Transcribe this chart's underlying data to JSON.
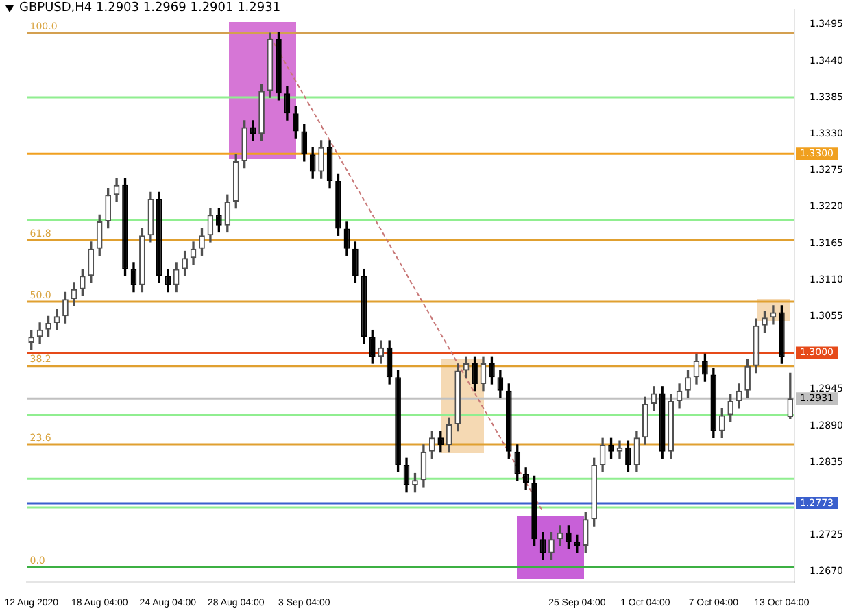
{
  "chart_data": {
    "type": "candlestick",
    "title": "GBPUSD,H4 1.2903 1.2969 1.2901 1.2931",
    "categories": [
      "12 Aug 2020",
      null,
      null,
      null,
      null,
      null,
      null,
      null,
      "18 Aug 04:00",
      null,
      null,
      null,
      null,
      null,
      null,
      null,
      "24 Aug 04:00",
      null,
      null,
      null,
      null,
      null,
      null,
      null,
      "28 Aug 04:00",
      null,
      null,
      null,
      null,
      null,
      null,
      null,
      "3 Sep 04:00",
      null,
      null,
      null,
      null,
      null,
      null,
      null,
      null,
      null,
      null,
      null,
      null,
      null,
      null,
      null,
      null,
      null,
      null,
      null,
      null,
      null,
      null,
      null,
      null,
      null,
      null,
      null,
      null,
      null,
      null,
      null,
      "25 Sep 04:00",
      null,
      null,
      null,
      null,
      null,
      null,
      null,
      "1 Oct 04:00",
      null,
      null,
      null,
      null,
      null,
      null,
      null,
      "7 Oct 04:00",
      null,
      null,
      null,
      null,
      null,
      null,
      null,
      "13 Oct 04:00",
      null
    ],
    "ohlc": [
      [
        1.3015,
        1.3034,
        1.3005,
        1.3024
      ],
      [
        1.3024,
        1.3045,
        1.3014,
        1.3035
      ],
      [
        1.3035,
        1.3055,
        1.3025,
        1.3045
      ],
      [
        1.3045,
        1.3065,
        1.3035,
        1.3055
      ],
      [
        1.3055,
        1.3091,
        1.3045,
        1.3081
      ],
      [
        1.3081,
        1.3106,
        1.3071,
        1.3096
      ],
      [
        1.3096,
        1.3126,
        1.3086,
        1.3116
      ],
      [
        1.3116,
        1.3167,
        1.3106,
        1.3157
      ],
      [
        1.3157,
        1.3208,
        1.3147,
        1.3198
      ],
      [
        1.3198,
        1.3248,
        1.3188,
        1.3238
      ],
      [
        1.3238,
        1.3263,
        1.3228,
        1.3253
      ],
      [
        1.3253,
        1.3263,
        1.3116,
        1.3126
      ],
      [
        1.3126,
        1.3136,
        1.3092,
        1.3102
      ],
      [
        1.3102,
        1.3187,
        1.3092,
        1.3177
      ],
      [
        1.3177,
        1.3242,
        1.3167,
        1.3232
      ],
      [
        1.3232,
        1.3242,
        1.3106,
        1.3116
      ],
      [
        1.3116,
        1.3126,
        1.3092,
        1.3102
      ],
      [
        1.3102,
        1.3136,
        1.3092,
        1.3126
      ],
      [
        1.3126,
        1.3153,
        1.3116,
        1.3143
      ],
      [
        1.3143,
        1.3167,
        1.3133,
        1.3157
      ],
      [
        1.3157,
        1.3187,
        1.3147,
        1.3177
      ],
      [
        1.3177,
        1.3218,
        1.3167,
        1.3208
      ],
      [
        1.3208,
        1.3218,
        1.3182,
        1.3192
      ],
      [
        1.3192,
        1.3238,
        1.3182,
        1.3228
      ],
      [
        1.3228,
        1.3299,
        1.3218,
        1.3289
      ],
      [
        1.3289,
        1.335,
        1.3279,
        1.334
      ],
      [
        1.334,
        1.335,
        1.332,
        1.333
      ],
      [
        1.333,
        1.3405,
        1.332,
        1.3395
      ],
      [
        1.3395,
        1.3482,
        1.3385,
        1.3473
      ],
      [
        1.3473,
        1.3483,
        1.3381,
        1.3391
      ],
      [
        1.3391,
        1.3401,
        1.3351,
        1.3361
      ],
      [
        1.3361,
        1.3371,
        1.3324,
        1.3334
      ],
      [
        1.3334,
        1.3344,
        1.3289,
        1.3299
      ],
      [
        1.3299,
        1.3309,
        1.3263,
        1.3273
      ],
      [
        1.3273,
        1.332,
        1.3263,
        1.331
      ],
      [
        1.331,
        1.332,
        1.3249,
        1.3259
      ],
      [
        1.3259,
        1.3269,
        1.3177,
        1.3187
      ],
      [
        1.3187,
        1.3197,
        1.3147,
        1.3157
      ],
      [
        1.3157,
        1.3167,
        1.3106,
        1.3116
      ],
      [
        1.3116,
        1.3126,
        1.3014,
        1.3024
      ],
      [
        1.3024,
        1.3034,
        1.2984,
        1.2994
      ],
      [
        1.2994,
        1.3018,
        1.2984,
        1.3008
      ],
      [
        1.3008,
        1.3018,
        1.2953,
        1.2963
      ],
      [
        1.2963,
        1.2973,
        1.2821,
        1.2831
      ],
      [
        1.2831,
        1.2841,
        1.279,
        1.28
      ],
      [
        1.28,
        1.2818,
        1.279,
        1.2808
      ],
      [
        1.2808,
        1.2861,
        1.2798,
        1.2851
      ],
      [
        1.2851,
        1.2882,
        1.2841,
        1.2872
      ],
      [
        1.2872,
        1.2882,
        1.2851,
        1.2861
      ],
      [
        1.2861,
        1.2902,
        1.2851,
        1.2892
      ],
      [
        1.2892,
        1.2983,
        1.2882,
        1.2973
      ],
      [
        1.2973,
        1.2994,
        1.2963,
        1.2984
      ],
      [
        1.2984,
        1.2994,
        1.2943,
        1.2953
      ],
      [
        1.2953,
        1.2994,
        1.2943,
        1.2984
      ],
      [
        1.2984,
        1.2994,
        1.2953,
        1.2963
      ],
      [
        1.2963,
        1.2973,
        1.2933,
        1.2943
      ],
      [
        1.2943,
        1.2953,
        1.2841,
        1.2851
      ],
      [
        1.2851,
        1.2861,
        1.2807,
        1.2817
      ],
      [
        1.2817,
        1.2827,
        1.2794,
        1.2804
      ],
      [
        1.2804,
        1.2814,
        1.2709,
        1.2719
      ],
      [
        1.2719,
        1.2729,
        1.2688,
        1.2698
      ],
      [
        1.2698,
        1.2729,
        1.2688,
        1.2719
      ],
      [
        1.2719,
        1.2739,
        1.2709,
        1.2729
      ],
      [
        1.2729,
        1.2739,
        1.2705,
        1.2715
      ],
      [
        1.2715,
        1.2725,
        1.2699,
        1.2709
      ],
      [
        1.2709,
        1.2759,
        1.2699,
        1.2749
      ],
      [
        1.2749,
        1.2841,
        1.2739,
        1.2831
      ],
      [
        1.2831,
        1.2871,
        1.2821,
        1.2861
      ],
      [
        1.2861,
        1.2871,
        1.2841,
        1.2851
      ],
      [
        1.2851,
        1.2867,
        1.2841,
        1.2857
      ],
      [
        1.2857,
        1.2867,
        1.2821,
        1.2831
      ],
      [
        1.2831,
        1.2882,
        1.2821,
        1.2872
      ],
      [
        1.2872,
        1.2933,
        1.2862,
        1.2923
      ],
      [
        1.2923,
        1.2949,
        1.2913,
        1.2939
      ],
      [
        1.2939,
        1.2949,
        1.2841,
        1.2851
      ],
      [
        1.2851,
        1.2937,
        1.2841,
        1.2927
      ],
      [
        1.2927,
        1.2953,
        1.2917,
        1.2943
      ],
      [
        1.2943,
        1.2973,
        1.2933,
        1.2963
      ],
      [
        1.2963,
        1.2998,
        1.2953,
        1.2988
      ],
      [
        1.2988,
        1.2998,
        1.2957,
        1.2967
      ],
      [
        1.2967,
        1.2977,
        1.2872,
        1.2882
      ],
      [
        1.2882,
        1.2916,
        1.2872,
        1.2906
      ],
      [
        1.2906,
        1.2937,
        1.2896,
        1.2927
      ],
      [
        1.2927,
        1.2953,
        1.2917,
        1.2943
      ],
      [
        1.2943,
        1.299,
        1.2933,
        1.298
      ],
      [
        1.298,
        1.3051,
        1.297,
        1.3041
      ],
      [
        1.3041,
        1.3063,
        1.3031,
        1.3053
      ],
      [
        1.3053,
        1.3071,
        1.3043,
        1.3061
      ],
      [
        1.3061,
        1.3071,
        1.2984,
        1.2994
      ],
      [
        1.2903,
        1.2969,
        1.2901,
        1.2931
      ]
    ],
    "colors": [
      "#505050",
      "#505050",
      "#505050",
      "#505050",
      "#505050",
      "#505050",
      "#505050",
      "#505050",
      "#505050",
      "#505050",
      "#505050",
      "#000000",
      "#000000",
      "#505050",
      "#505050",
      "#000000",
      "#000000",
      "#505050",
      "#505050",
      "#505050",
      "#505050",
      "#505050",
      "#000000",
      "#505050",
      "#505050",
      "#505050",
      "#000000",
      "#505050",
      "#505050",
      "#000000",
      "#000000",
      "#000000",
      "#000000",
      "#000000",
      "#505050",
      "#000000",
      "#000000",
      "#000000",
      "#000000",
      "#000000",
      "#000000",
      "#505050",
      "#000000",
      "#000000",
      "#000000",
      "#505050",
      "#505050",
      "#505050",
      "#000000",
      "#505050",
      "#505050",
      "#505050",
      "#000000",
      "#505050",
      "#000000",
      "#000000",
      "#000000",
      "#000000",
      "#000000",
      "#000000",
      "#000000",
      "#505050",
      "#505050",
      "#000000",
      "#000000",
      "#505050",
      "#505050",
      "#505050",
      "#000000",
      "#505050",
      "#000000",
      "#505050",
      "#505050",
      "#505050",
      "#000000",
      "#505050",
      "#505050",
      "#505050",
      "#505050",
      "#000000",
      "#000000",
      "#505050",
      "#505050",
      "#505050",
      "#505050",
      "#505050",
      "#505050",
      "#505050",
      "#000000",
      "#505050"
    ],
    "series": [
      {
        "type": "line",
        "color": "#c87878",
        "line_style": "dashed",
        "values": [
          null,
          null,
          null,
          null,
          null,
          null,
          null,
          null,
          null,
          null,
          null,
          null,
          null,
          null,
          null,
          null,
          null,
          null,
          null,
          null,
          null,
          null,
          null,
          null,
          null,
          null,
          null,
          null,
          1.3477,
          null,
          null,
          null,
          null,
          null,
          null,
          null,
          null,
          null,
          null,
          null,
          null,
          null,
          null,
          null,
          null,
          null,
          null,
          null,
          null,
          null,
          null,
          null,
          null,
          null,
          null,
          null,
          null,
          null,
          null,
          null,
          1.276,
          null,
          null,
          null,
          null,
          null,
          null,
          null,
          null,
          null,
          null,
          null,
          null,
          null,
          null,
          null,
          null,
          null,
          null,
          null,
          null,
          null,
          null,
          null,
          null,
          null,
          null,
          null,
          null,
          null
        ]
      }
    ],
    "ylim": [
      1.2654,
      1.3517
    ],
    "yticks": [
      {
        "value": 1.3495,
        "label": "1.3495"
      },
      {
        "value": 1.344,
        "label": "1.3440"
      },
      {
        "value": 1.3385,
        "label": "1.3385"
      },
      {
        "value": 1.333,
        "label": "1.3330"
      },
      {
        "value": 1.3275,
        "label": "1.3275"
      },
      {
        "value": 1.322,
        "label": "1.3220"
      },
      {
        "value": 1.3165,
        "label": "1.3165"
      },
      {
        "value": 1.311,
        "label": "1.3110"
      },
      {
        "value": 1.3055,
        "label": "1.3055"
      },
      {
        "value": 1.2945,
        "label": "1.2945"
      },
      {
        "value": 1.289,
        "label": "1.2890"
      },
      {
        "value": 1.2835,
        "label": "1.2835"
      },
      {
        "value": 1.2725,
        "label": "1.2725"
      },
      {
        "value": 1.267,
        "label": "1.2670"
      }
    ],
    "ref_lines": [
      {
        "axis": "y",
        "value": 1.3482,
        "color": "#d4a050"
      },
      {
        "axis": "y",
        "value": 1.3385,
        "color": "#90ee90"
      },
      {
        "axis": "y",
        "value": 1.33,
        "label": "1.3300",
        "color": "#f0a020"
      },
      {
        "axis": "y",
        "value": 1.32,
        "color": "#90ee90"
      },
      {
        "axis": "y",
        "value": 1.317,
        "color": "#e0a030"
      },
      {
        "axis": "y",
        "value": 1.3077,
        "color": "#e0a030"
      },
      {
        "axis": "y",
        "value": 1.3,
        "label": "1.3000",
        "color": "#e64a19"
      },
      {
        "axis": "y",
        "value": 1.298,
        "color": "#e0a030"
      },
      {
        "axis": "y",
        "value": 1.2931,
        "label": "1.2931",
        "color": "#c0c0c0"
      },
      {
        "axis": "y",
        "value": 1.2906,
        "color": "#90ee90"
      },
      {
        "axis": "y",
        "value": 1.2862,
        "color": "#e0a030"
      },
      {
        "axis": "y",
        "value": 1.281,
        "color": "#90ee90"
      },
      {
        "axis": "y",
        "value": 1.2773,
        "label": "1.2773",
        "color": "#3a5fcd"
      },
      {
        "axis": "y",
        "value": 1.2767,
        "color": "#90ee90"
      },
      {
        "axis": "y",
        "value": 1.2677,
        "color": "#3cb043"
      }
    ],
    "annotations": [
      {
        "text": "100.0",
        "y": 1.3482
      },
      {
        "text": "61.8",
        "y": 1.317
      },
      {
        "text": "50.0",
        "y": 1.3077
      },
      {
        "text": "38.2",
        "y": 1.298
      },
      {
        "text": "23.6",
        "y": 1.2862
      },
      {
        "text": "0.0",
        "y": 1.2677
      }
    ],
    "grid": false,
    "legend": false
  }
}
